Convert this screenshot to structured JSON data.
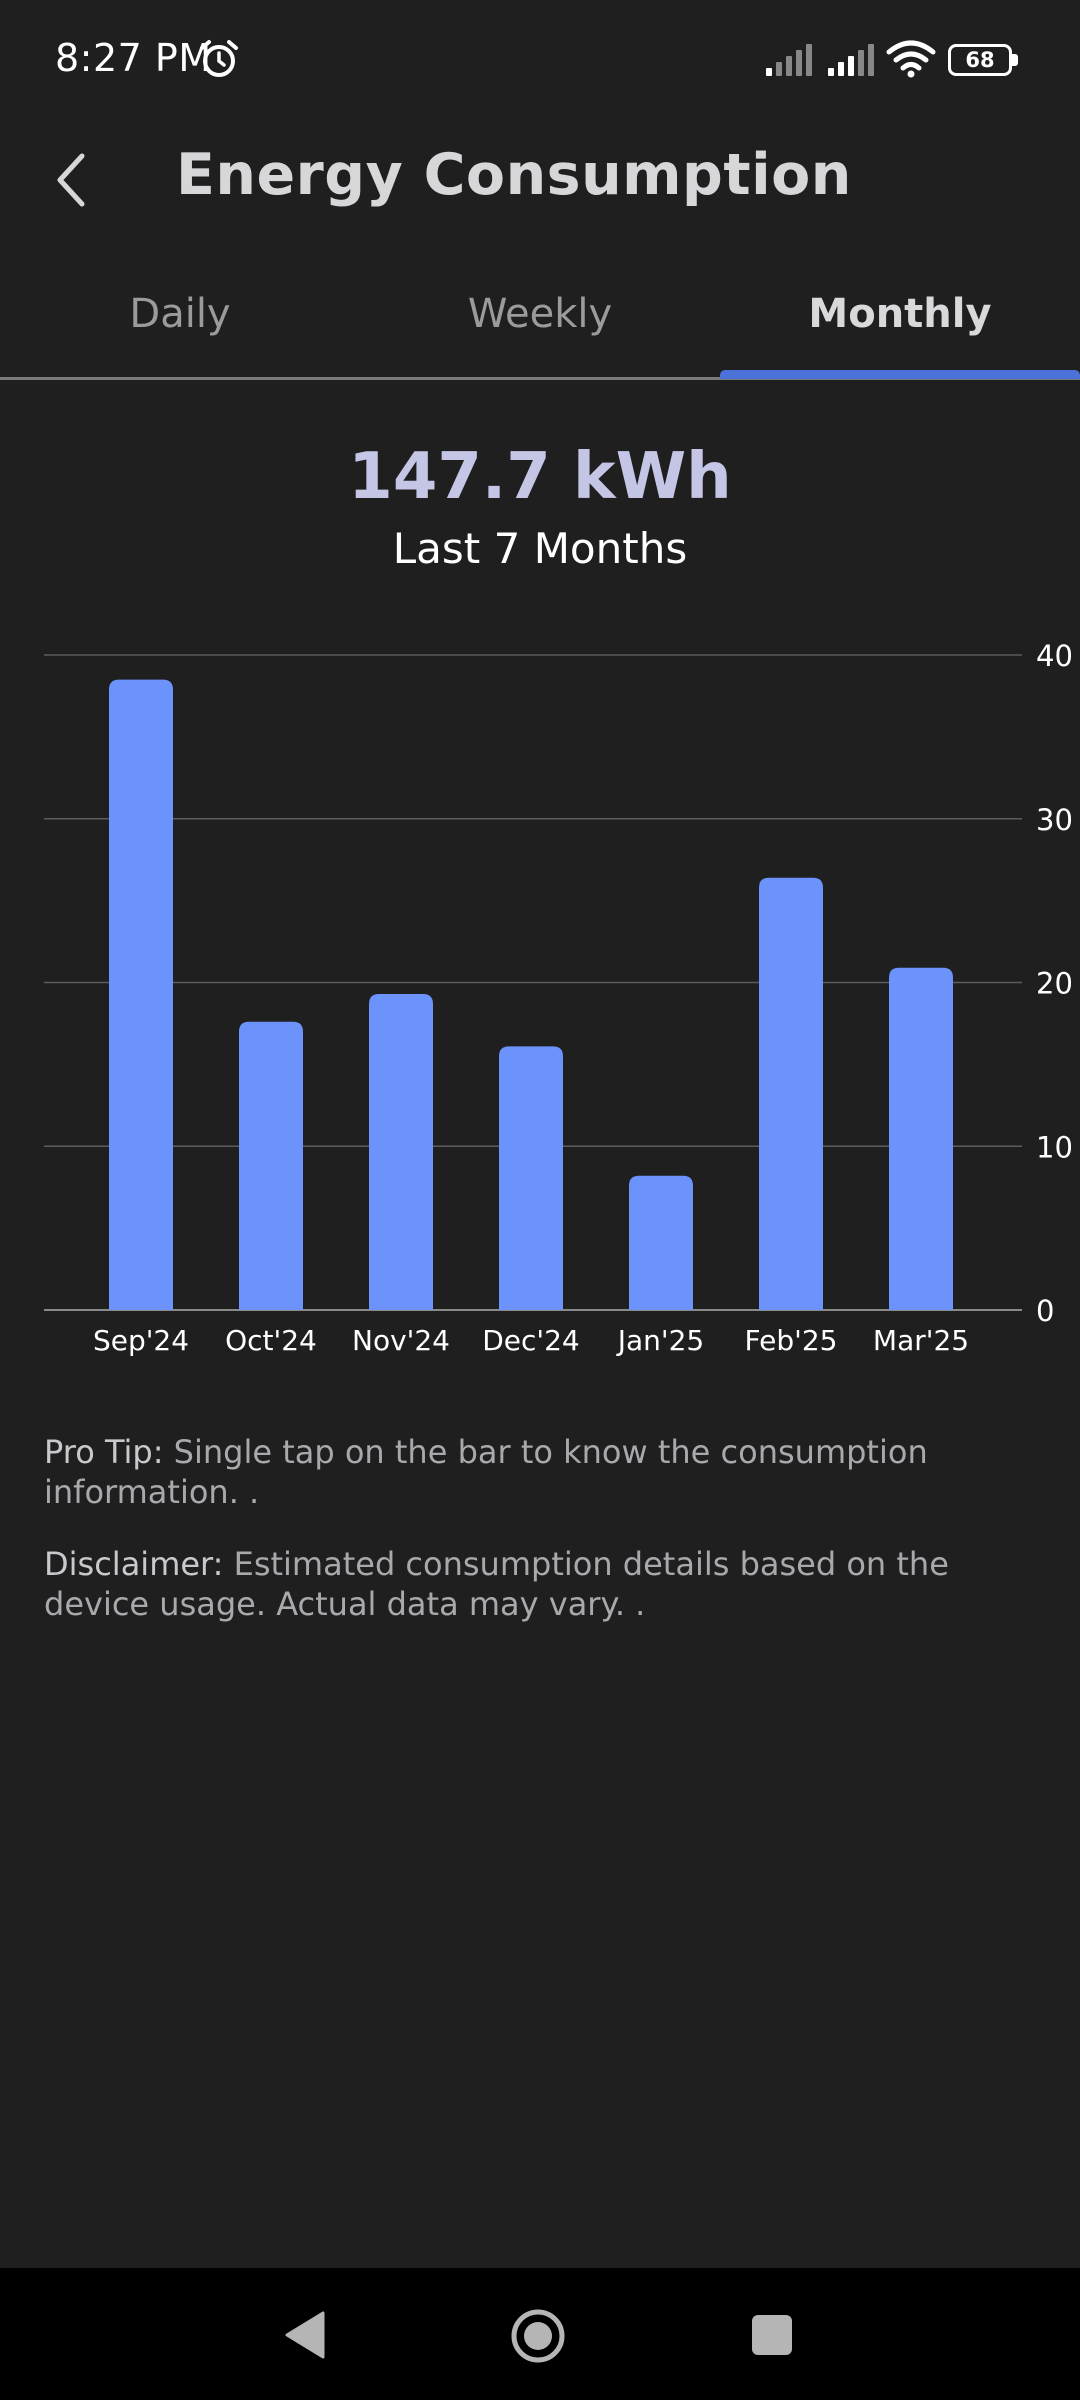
{
  "status_bar": {
    "time": "8:27 PM",
    "battery_level": "68",
    "icons": [
      "alarm-icon",
      "signal-icon",
      "signal-icon",
      "wifi-icon",
      "battery-icon"
    ]
  },
  "header": {
    "back_icon": "chevron-left-icon",
    "title": "Energy Consumption"
  },
  "tabs": [
    {
      "label": "Daily",
      "selected": false
    },
    {
      "label": "Weekly",
      "selected": false
    },
    {
      "label": "Monthly",
      "selected": true
    }
  ],
  "summary": {
    "total": "147.7 kWh",
    "period": "Last 7 Months"
  },
  "chart_data": {
    "type": "bar",
    "categories": [
      "Sep'24",
      "Oct'24",
      "Nov'24",
      "Dec'24",
      "Jan'25",
      "Feb'25",
      "Mar'25"
    ],
    "values": [
      38.5,
      17.6,
      19.3,
      16.1,
      8.2,
      26.4,
      20.9
    ],
    "ylim": [
      0,
      40
    ],
    "yticks": [
      "0",
      "10",
      "20",
      "30",
      "40"
    ],
    "y_axis_position": "right",
    "grid": true,
    "bar_color": "#6b93fb"
  },
  "notes": {
    "tip_label": "Pro Tip:",
    "tip_text": " Single tap on the bar to know the consumption information. .",
    "disclaimer_label": "Disclaimer:",
    "disclaimer_text": " Estimated consumption details based on the device usage. Actual data may vary. ."
  },
  "nav_bar": {
    "icons": [
      "nav-back-icon",
      "nav-home-icon",
      "nav-recents-icon"
    ]
  },
  "colors": {
    "background": "#1f1f20",
    "accent": "#4a72d8",
    "bar": "#6b93fb",
    "total_text": "#c5c6e6"
  }
}
